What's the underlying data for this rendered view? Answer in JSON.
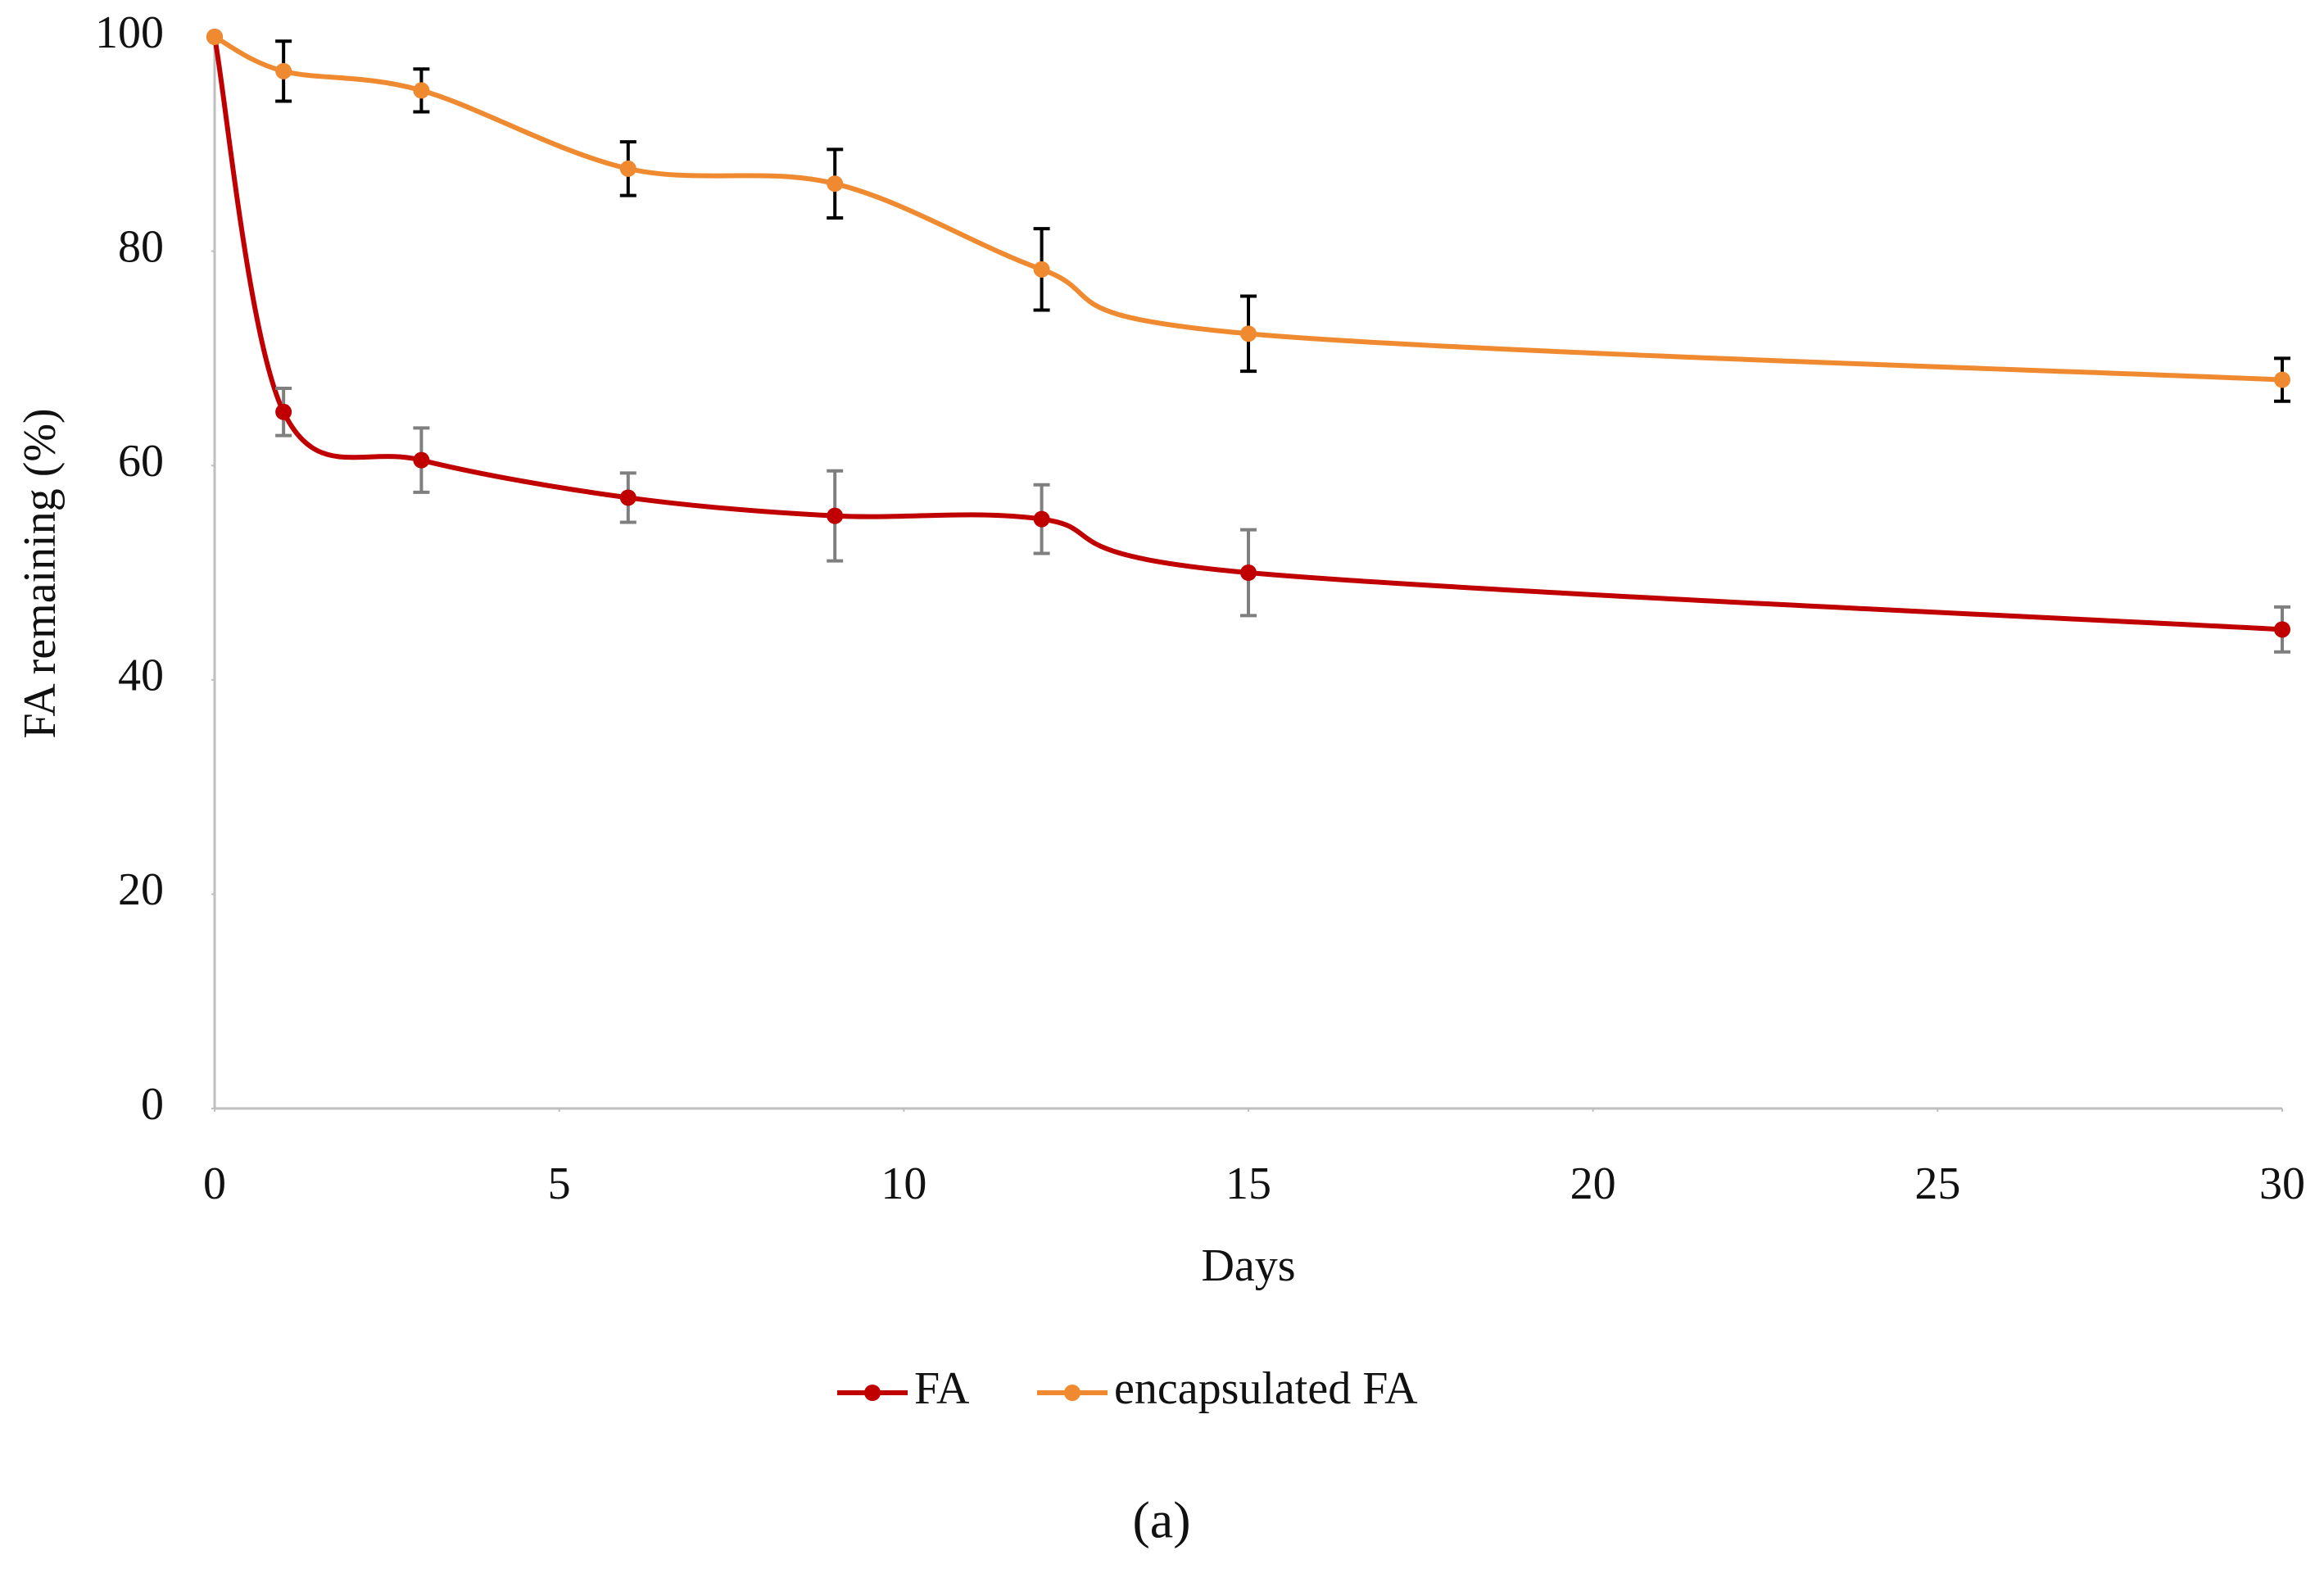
{
  "chart_data": {
    "type": "line",
    "xlabel": "Days",
    "ylabel": "FA remaining (%)",
    "caption": "(a)",
    "x": [
      0,
      1,
      3,
      6,
      9,
      12,
      15,
      30
    ],
    "series": [
      {
        "name": "FA",
        "color": "#c00000",
        "error_color": "#7f7f7f",
        "values": [
          100,
          65,
          60.5,
          57,
          55.3,
          55,
          50,
          44.7
        ],
        "errors": [
          0,
          2.2,
          3,
          2.3,
          4.2,
          3.2,
          4,
          2.1
        ]
      },
      {
        "name": "encapsulated FA",
        "color": "#f08a30",
        "error_color": "#000000",
        "values": [
          100,
          96.8,
          95,
          87.7,
          86.3,
          78.3,
          72.3,
          68
        ],
        "errors": [
          0,
          2.8,
          2,
          2.5,
          3.2,
          3.8,
          3.5,
          2
        ]
      }
    ],
    "xlim": [
      0,
      30
    ],
    "xticks": [
      0,
      5,
      10,
      15,
      20,
      25,
      30
    ],
    "ylim": [
      0,
      100
    ],
    "yticks": [
      0,
      20,
      40,
      60,
      80,
      100
    ],
    "grid": false,
    "legend": "bottom"
  }
}
